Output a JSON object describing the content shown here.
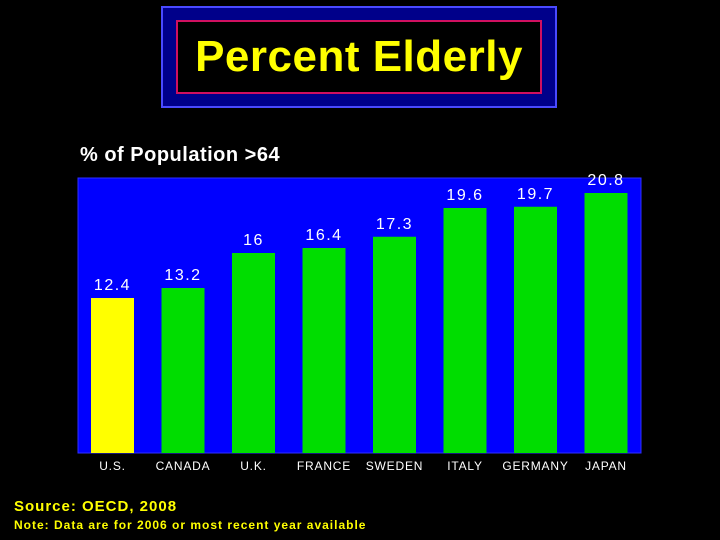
{
  "title": "Percent Elderly",
  "colors": {
    "background": "#000000",
    "title_text": "#ffff00",
    "plot_background": "#0000ff",
    "highlight_bar": "#ffff00",
    "bar": "#00dd00",
    "label_text": "#ffffff"
  },
  "chart_data": {
    "type": "bar",
    "title": "% of Population >64",
    "categories": [
      "U.S.",
      "CANADA",
      "U.K.",
      "FRANCE",
      "SWEDEN",
      "ITALY",
      "GERMANY",
      "JAPAN"
    ],
    "values": [
      12.4,
      13.2,
      16,
      16.4,
      17.3,
      19.6,
      19.7,
      20.8
    ],
    "value_labels": [
      "12.4",
      "13.2",
      "16",
      "16.4",
      "17.3",
      "19.6",
      "19.7",
      "20.8"
    ],
    "highlight_index": 0,
    "ylim": [
      0,
      22
    ],
    "xlabel": "",
    "ylabel": "",
    "grid": false,
    "legend": "none"
  },
  "footer": {
    "source": "Source: OECD, 2008",
    "note": "Note: Data are for 2006 or most recent year available"
  }
}
